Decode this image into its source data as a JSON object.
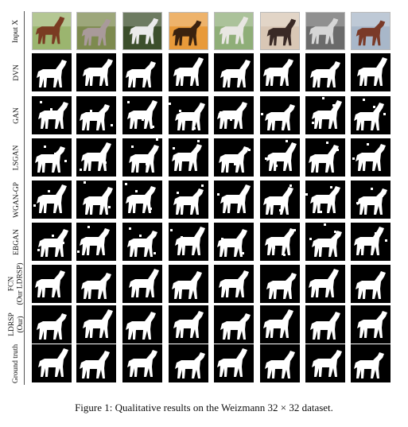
{
  "figure": {
    "row_labels": [
      [
        "Input X"
      ],
      [
        "DVN"
      ],
      [
        "GAN"
      ],
      [
        "LSGAN"
      ],
      [
        "WGAN-GP"
      ],
      [
        "EBGAN"
      ],
      [
        "FCN",
        "(Our LDRSP)"
      ],
      [
        "LDRSP",
        "(Our)"
      ],
      [
        "Ground truth"
      ]
    ],
    "columns": 8,
    "caption": "Figure 1: Qualitative results on the Weizmann 32 × 32 dataset.",
    "photo_backgrounds": [
      "#9bb56f",
      "#7d8a4f",
      "#3c4f2c",
      "#e89a3a",
      "#8fae78",
      "#d9c7b5",
      "#6b6b6b",
      "#a8b7c9"
    ],
    "photo_horse_colors": [
      "#7a3b22",
      "#a99a9a",
      "#ebebeb",
      "#3a220f",
      "#e8e6e2",
      "#3a2a26",
      "#d6d6d6",
      "#7a3a28"
    ]
  }
}
